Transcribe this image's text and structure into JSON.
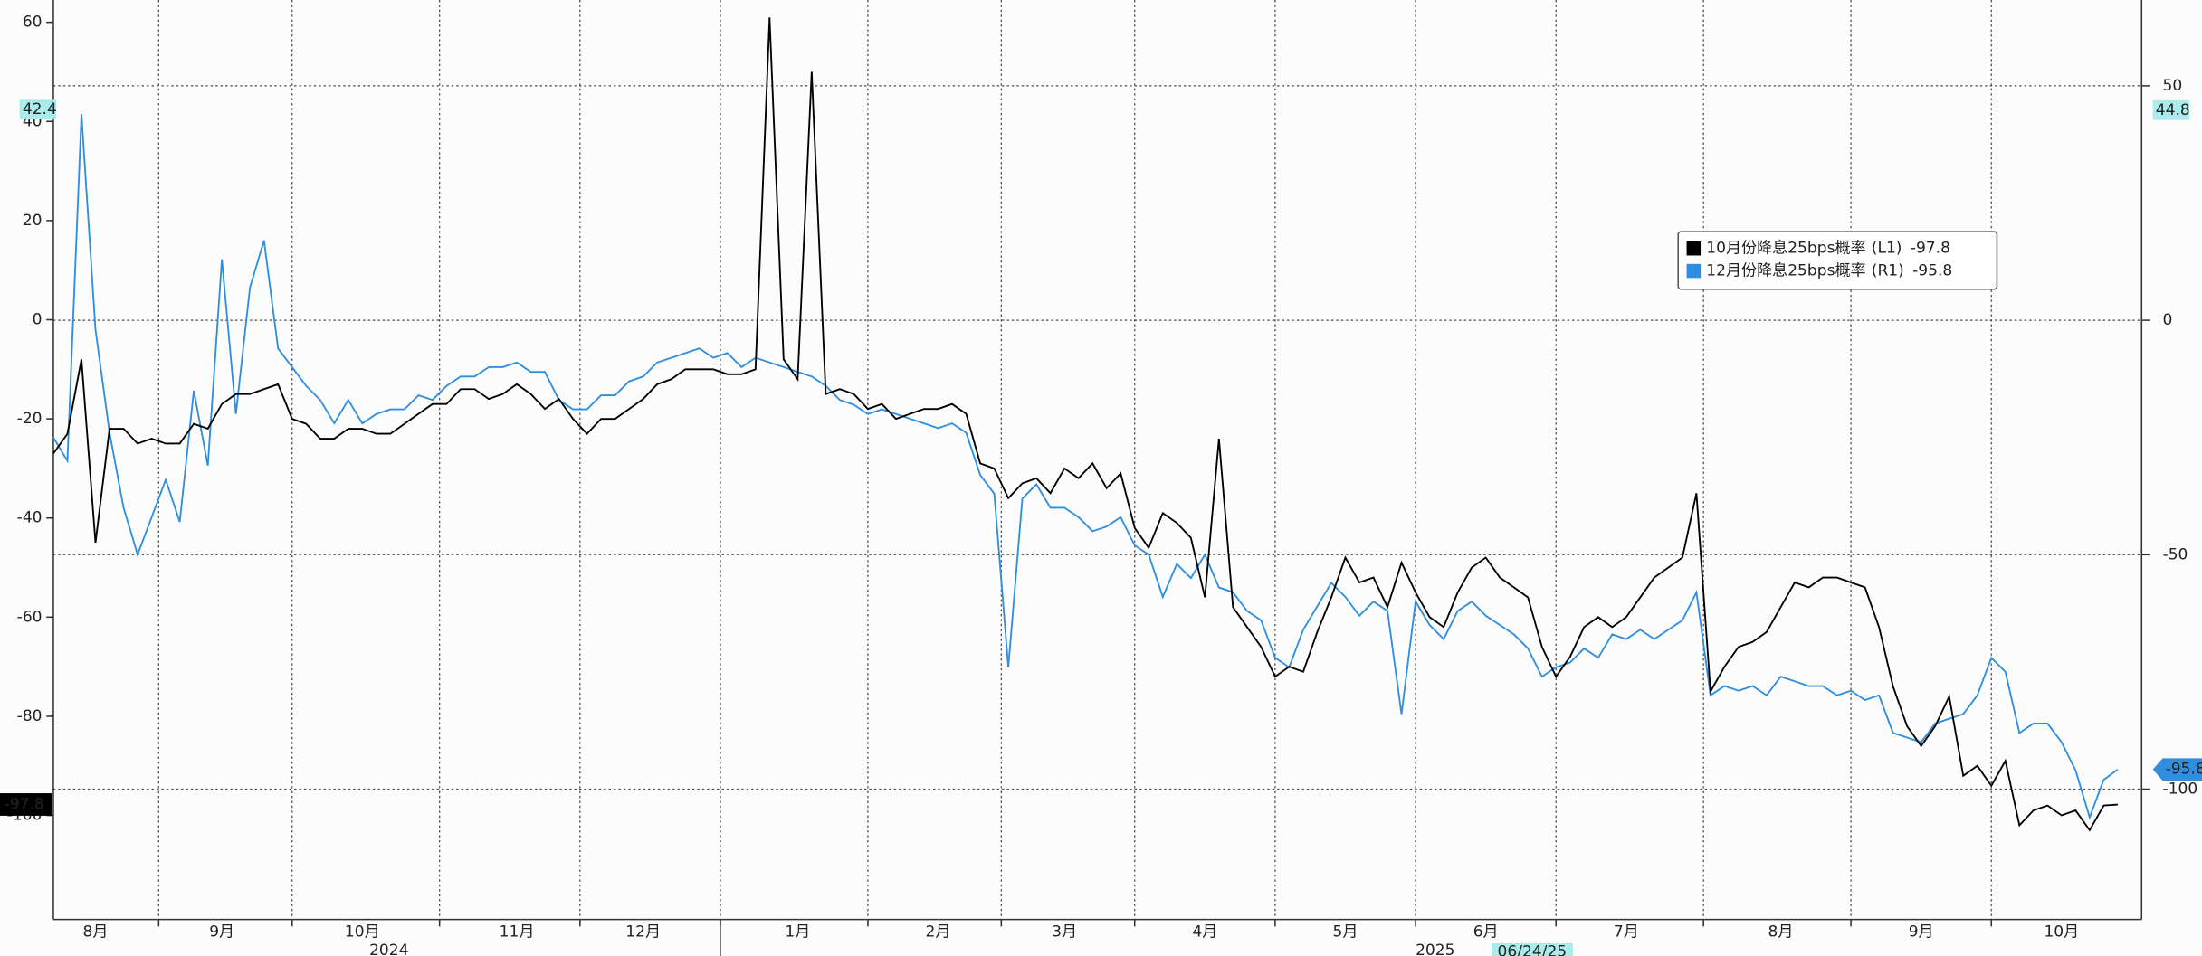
{
  "chart_data": {
    "type": "line",
    "categories": [
      null,
      null,
      null,
      "8月",
      null,
      null,
      null,
      null,
      null,
      null,
      null,
      null,
      "9月",
      null,
      null,
      null,
      null,
      null,
      null,
      null,
      null,
      null,
      "10月",
      null,
      null,
      null,
      null,
      null,
      null,
      null,
      null,
      null,
      null,
      "11月",
      null,
      null,
      null,
      null,
      null,
      null,
      null,
      null,
      "12月",
      null,
      null,
      null,
      null,
      null,
      null,
      null,
      null,
      null,
      null,
      "1月",
      null,
      null,
      null,
      null,
      null,
      null,
      null,
      null,
      null,
      "2月",
      null,
      null,
      null,
      null,
      null,
      null,
      null,
      null,
      "3月",
      null,
      null,
      null,
      null,
      null,
      null,
      null,
      null,
      null,
      "4月",
      null,
      null,
      null,
      null,
      null,
      null,
      null,
      null,
      null,
      "5月",
      null,
      null,
      null,
      null,
      null,
      null,
      null,
      null,
      null,
      "6月",
      null,
      null,
      null,
      null,
      null,
      null,
      null,
      null,
      null,
      "7月",
      null,
      null,
      null,
      null,
      null,
      null,
      null,
      null,
      null,
      null,
      "8月",
      null,
      null,
      null,
      null,
      null,
      null,
      null,
      null,
      null,
      "9月",
      null,
      null,
      null,
      null,
      null,
      null,
      null,
      null,
      null,
      "10月",
      null,
      null,
      null,
      null
    ],
    "year_labels": [
      "2024",
      "2025"
    ],
    "cursor_label": "06/24/25",
    "cursor_values": {
      "y": 42.4,
      "y2": 44.8
    },
    "series": [
      {
        "name": "10月份降息25bps概率",
        "axis_label": "(L1)",
        "last_value": -97.8,
        "color": "#000000",
        "axis": "y",
        "values": [
          -27,
          -23,
          -8,
          -45,
          -22,
          -22,
          -25,
          -24,
          -25,
          -25,
          -21,
          -22,
          -17,
          -15,
          -15,
          -14,
          -13,
          -20,
          -21,
          -24,
          -24,
          -22,
          -22,
          -23,
          -23,
          -21,
          -19,
          -17,
          -17,
          -14,
          -14,
          -16,
          -15,
          -13,
          -15,
          -18,
          -16,
          -20,
          -23,
          -20,
          -20,
          -18,
          -16,
          -13,
          -12,
          -10,
          -10,
          -10,
          -11,
          -11,
          -10,
          61,
          -8,
          -12,
          50,
          -15,
          -14,
          -15,
          -18,
          -17,
          -20,
          -19,
          -18,
          -18,
          -17,
          -19,
          -29,
          -30,
          -36,
          -33,
          -32,
          -35,
          -30,
          -32,
          -29,
          -34,
          -31,
          -42,
          -46,
          -39,
          -41,
          -44,
          -56,
          -24,
          -58,
          -62,
          -66,
          -72,
          -70,
          -71,
          -63,
          -56,
          -48,
          -53,
          -52,
          -58,
          -49,
          -55,
          -60,
          -62,
          -55,
          -50,
          -48,
          -52,
          -54,
          -56,
          -66,
          -72,
          -68,
          -62,
          -60,
          -62,
          -60,
          -56,
          -52,
          -50,
          -48,
          -35,
          -75,
          -70,
          -66,
          -65,
          -63,
          -58,
          -53,
          -54,
          -52,
          -52,
          -53,
          -54,
          -62,
          -74,
          -82,
          -86,
          -82,
          -76,
          -92,
          -90,
          -94,
          -89,
          -102,
          -99,
          -98,
          -100,
          -99,
          -103,
          -98,
          -97.8
        ]
      },
      {
        "name": "12月份降息25bps概率",
        "axis_label": "(R1)",
        "last_value": -95.8,
        "color": "#2f8fde",
        "axis": "y2",
        "values": [
          -25,
          -30,
          44,
          -2,
          -24,
          -40,
          -50,
          -42,
          -34,
          -43,
          -15,
          -31,
          13,
          -20,
          7,
          17,
          -6,
          -10,
          -14,
          -17,
          -22,
          -17,
          -22,
          -20,
          -19,
          -19,
          -16,
          -17,
          -14,
          -12,
          -12,
          -10,
          -10,
          -9,
          -11,
          -11,
          -17,
          -19,
          -19,
          -16,
          -16,
          -13,
          -12,
          -9,
          -8,
          -7,
          -6,
          -8,
          -7,
          -10,
          -8,
          -9,
          -10,
          -11,
          -12,
          -14,
          -17,
          -18,
          -20,
          -19,
          -20,
          -21,
          -22,
          -23,
          -22,
          -24,
          -33,
          -37,
          -74,
          -38,
          -35,
          -40,
          -40,
          -42,
          -45,
          -44,
          -42,
          -48,
          -50,
          -59,
          -52,
          -55,
          -50,
          -57,
          -58,
          -62,
          -64,
          -72,
          -74,
          -66,
          -61,
          -56,
          -59,
          -63,
          -60,
          -62,
          -84,
          -60,
          -65,
          -68,
          -62,
          -60,
          -63,
          -65,
          -67,
          -70,
          -76,
          -74,
          -73,
          -70,
          -72,
          -67,
          -68,
          -66,
          -68,
          -66,
          -64,
          -58,
          -80,
          -78,
          -79,
          -78,
          -80,
          -76,
          -77,
          -78,
          -78,
          -80,
          -79,
          -81,
          -80,
          -88,
          -89,
          -90,
          -86,
          -85,
          -84,
          -80,
          -72,
          -75,
          -88,
          -86,
          -86,
          -90,
          -96,
          -106,
          -98,
          -95.8
        ]
      }
    ],
    "ylim": [
      -121,
      64.5
    ],
    "yticks": [
      -100,
      -80,
      -60,
      -40,
      -20,
      0,
      20,
      40,
      60
    ],
    "y2lim": [
      -127.8,
      68.3
    ],
    "y2ticks": [
      -100,
      -50,
      0,
      50
    ],
    "grid": true,
    "legend": "upper-right"
  }
}
